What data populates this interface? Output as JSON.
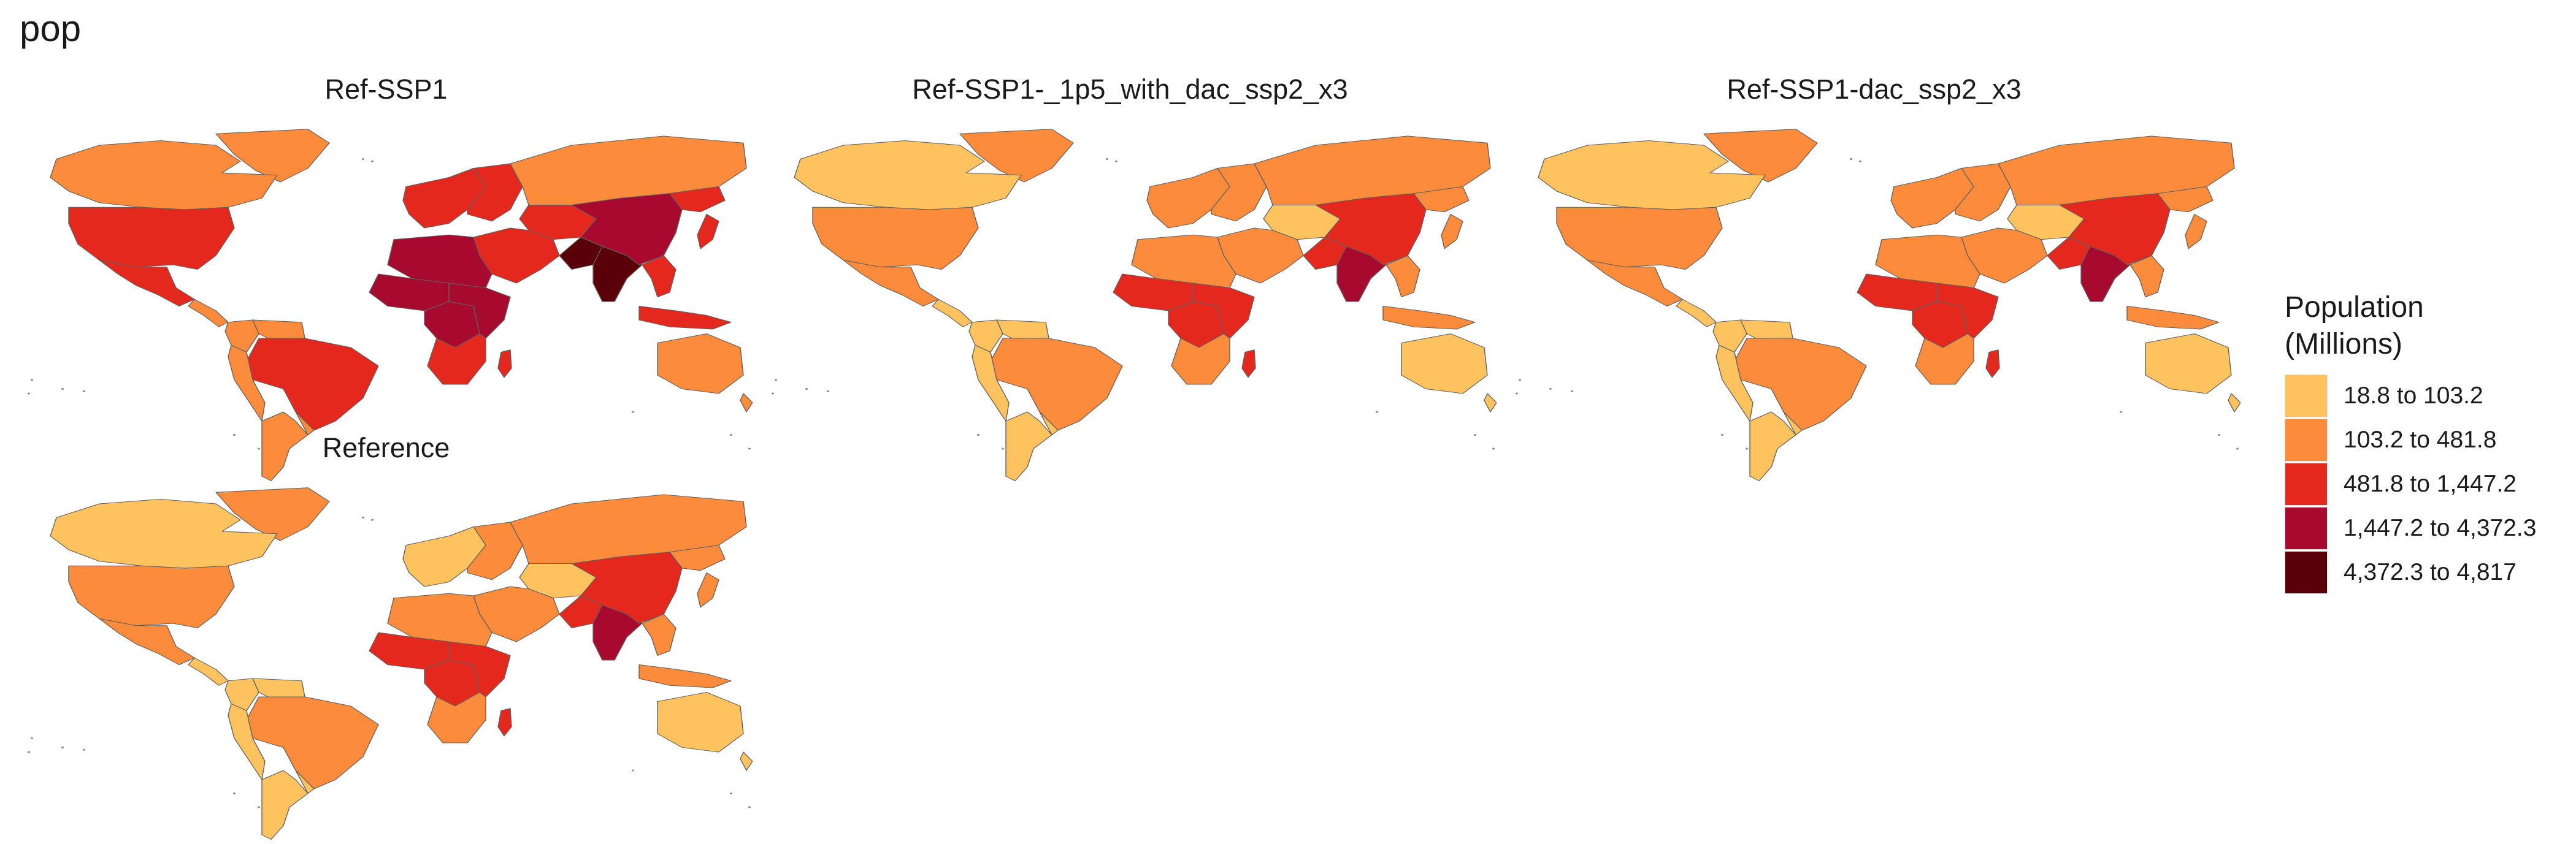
{
  "title": "pop",
  "legend": {
    "title_line1": "Population",
    "title_line2": "(Millions)",
    "classes": [
      {
        "label": "18.8 to 103.2",
        "color": "#FEC35E"
      },
      {
        "label": "103.2 to 481.8",
        "color": "#FC8C3B"
      },
      {
        "label": "481.8 to 1,447.2",
        "color": "#E4281E"
      },
      {
        "label": "1,447.2 to 4,372.3",
        "color": "#A70A2E"
      },
      {
        "label": "4,372.3 to 4,817",
        "color": "#5A0008"
      }
    ]
  },
  "panels": [
    {
      "title": "Ref-SSP1",
      "class_by_region": {
        "canada": 1,
        "usa": 2,
        "mexico": 2,
        "central_america": 1,
        "colombia": 1,
        "venezuela": 1,
        "brazil": 2,
        "argentina": 1,
        "andean": 1,
        "southern_cone": 1,
        "greenland": 1,
        "western_europe": 2,
        "eastern_europe": 2,
        "russia": 1,
        "central_asia": 2,
        "middle_east": 2,
        "north_africa": 3,
        "west_africa": 3,
        "central_africa": 3,
        "east_africa": 3,
        "southern_africa": 2,
        "madagascar": 2,
        "south_asia": 4,
        "india": 4,
        "china": 3,
        "east_asia_se": 2,
        "japan": 2,
        "southeast_asia": 2,
        "indonesia": 2,
        "australia": 1,
        "new_zealand": 1
      }
    },
    {
      "title": "Ref-SSP1-_1p5_with_dac_ssp2_x3",
      "class_by_region": {
        "canada": 0,
        "usa": 1,
        "mexico": 1,
        "central_america": 0,
        "colombia": 0,
        "venezuela": 0,
        "brazil": 1,
        "argentina": 0,
        "andean": 0,
        "southern_cone": 0,
        "greenland": 1,
        "western_europe": 1,
        "eastern_europe": 1,
        "russia": 1,
        "central_asia": 0,
        "middle_east": 1,
        "north_africa": 1,
        "west_africa": 2,
        "central_africa": 2,
        "east_africa": 2,
        "southern_africa": 1,
        "madagascar": 2,
        "south_asia": 2,
        "india": 3,
        "china": 2,
        "east_asia_se": 1,
        "japan": 1,
        "southeast_asia": 1,
        "indonesia": 1,
        "australia": 0,
        "new_zealand": 0
      }
    },
    {
      "title": "Ref-SSP1-dac_ssp2_x3",
      "class_by_region": {
        "canada": 0,
        "usa": 1,
        "mexico": 1,
        "central_america": 0,
        "colombia": 0,
        "venezuela": 0,
        "brazil": 1,
        "argentina": 0,
        "andean": 0,
        "southern_cone": 0,
        "greenland": 1,
        "western_europe": 1,
        "eastern_europe": 1,
        "russia": 1,
        "central_asia": 0,
        "middle_east": 1,
        "north_africa": 1,
        "west_africa": 2,
        "central_africa": 2,
        "east_africa": 2,
        "southern_africa": 1,
        "madagascar": 2,
        "south_asia": 2,
        "india": 3,
        "china": 2,
        "east_asia_se": 1,
        "japan": 1,
        "southeast_asia": 1,
        "indonesia": 1,
        "australia": 0,
        "new_zealand": 0
      }
    },
    {
      "title": "Reference",
      "class_by_region": {
        "canada": 0,
        "usa": 1,
        "mexico": 1,
        "central_america": 0,
        "colombia": 0,
        "venezuela": 0,
        "brazil": 1,
        "argentina": 0,
        "andean": 0,
        "southern_cone": 0,
        "greenland": 1,
        "western_europe": 0,
        "eastern_europe": 1,
        "russia": 1,
        "central_asia": 0,
        "middle_east": 1,
        "north_africa": 1,
        "west_africa": 2,
        "central_africa": 2,
        "east_africa": 2,
        "southern_africa": 1,
        "madagascar": 2,
        "south_asia": 2,
        "india": 3,
        "china": 2,
        "east_asia_se": 1,
        "japan": 1,
        "southeast_asia": 1,
        "indonesia": 1,
        "australia": 0,
        "new_zealand": 0
      }
    }
  ]
}
